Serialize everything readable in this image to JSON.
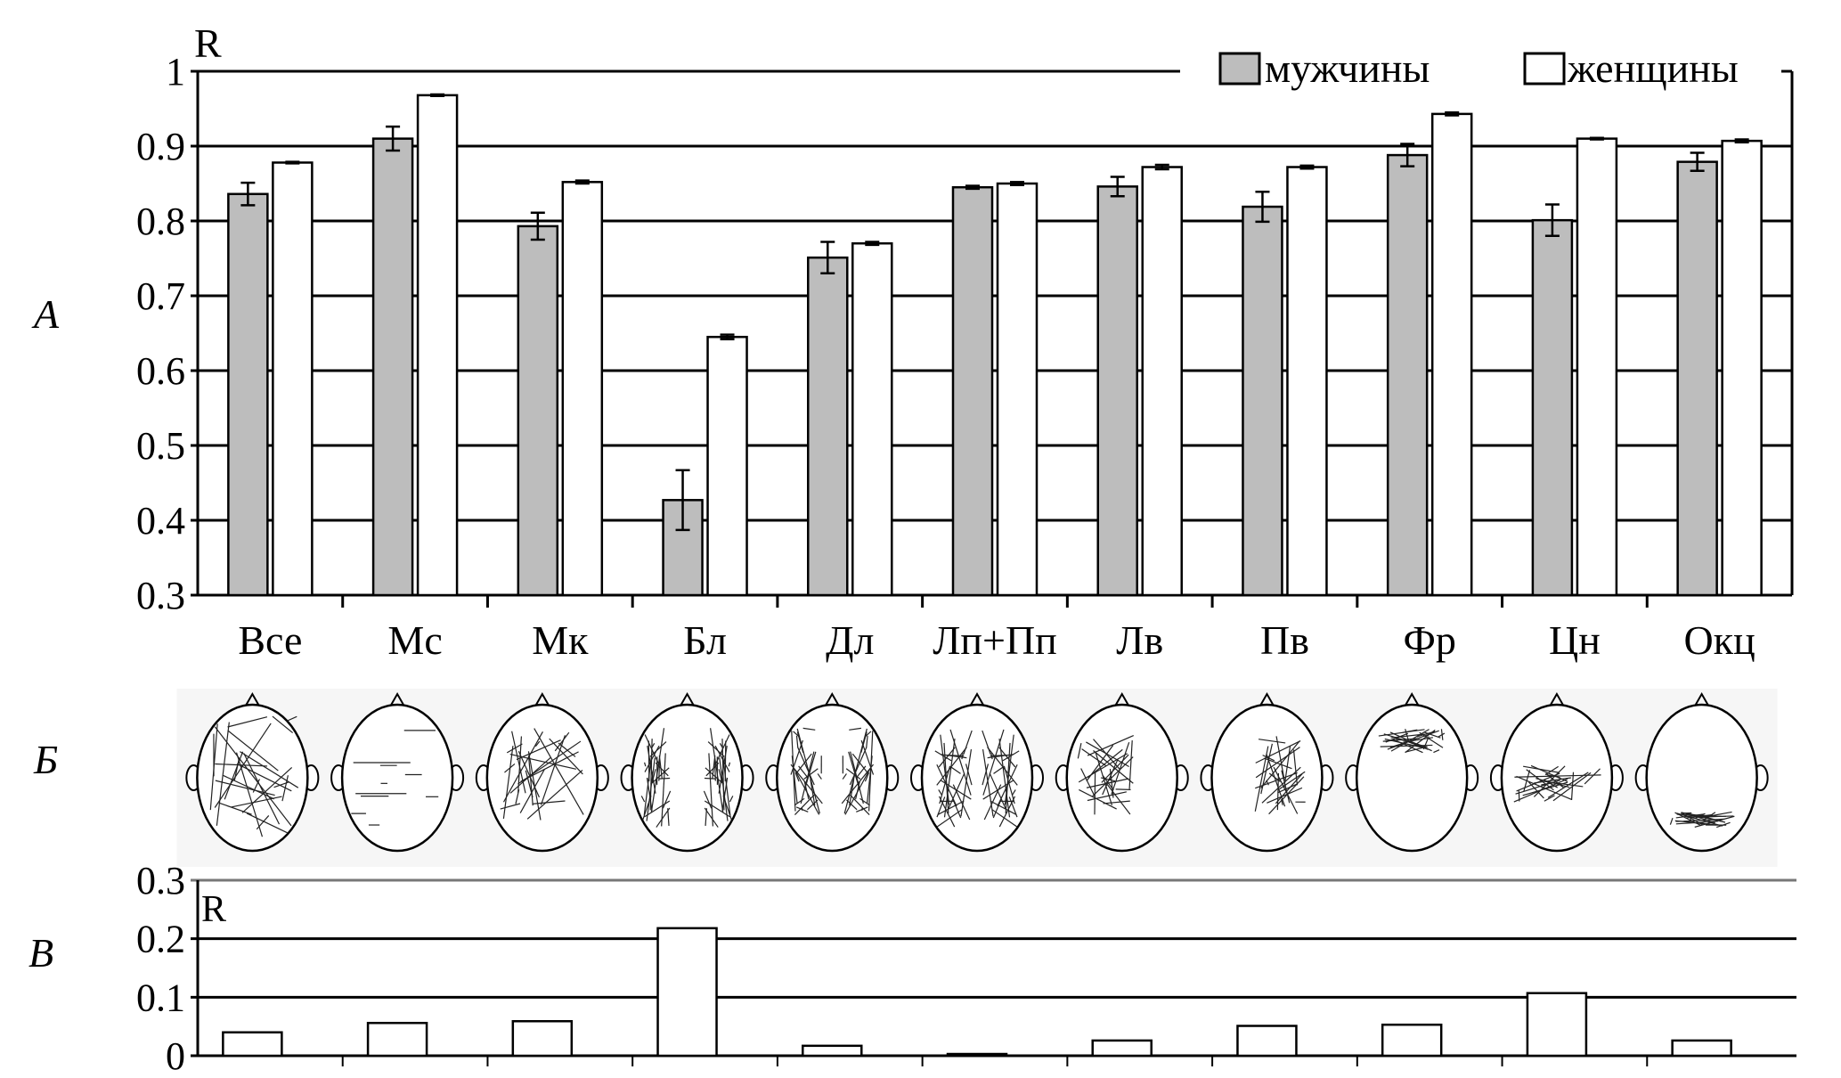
{
  "panel_labels": {
    "a": "A",
    "b": "Б",
    "c": "В"
  },
  "colors": {
    "men": "#bdbdbd",
    "women": "#ffffff",
    "lines": "#000000"
  },
  "chart_data": [
    {
      "type": "bar",
      "panel": "A",
      "ylabel": "R",
      "ylim": [
        0.3,
        1.0
      ],
      "yticks": [
        "0.3",
        "0.4",
        "0.5",
        "0.6",
        "0.7",
        "0.8",
        "0.9",
        "1"
      ],
      "grid": true,
      "legend_placement": "top-right",
      "categories": [
        "Все",
        "Мс",
        "Мк",
        "Бл",
        "Дл",
        "Лп+Пп",
        "Лв",
        "Пв",
        "Фр",
        "Цн",
        "Окц"
      ],
      "series": [
        {
          "name": "мужчины",
          "color": "#bdbdbd",
          "values": [
            0.836,
            0.91,
            0.793,
            0.427,
            0.751,
            0.845,
            0.846,
            0.819,
            0.888,
            0.801,
            0.879
          ],
          "errors": [
            0.015,
            0.016,
            0.018,
            0.04,
            0.021,
            0.002,
            0.013,
            0.02,
            0.015,
            0.021,
            0.012
          ]
        },
        {
          "name": "женщины",
          "color": "#ffffff",
          "values": [
            0.878,
            0.968,
            0.852,
            0.645,
            0.77,
            0.85,
            0.872,
            0.872,
            0.943,
            0.91,
            0.907
          ],
          "errors": [
            0.001,
            0.001,
            0.002,
            0.003,
            0.002,
            0.002,
            0.003,
            0.002,
            0.002,
            0.001,
            0.002
          ]
        }
      ]
    },
    {
      "type": "bar",
      "panel": "В",
      "ylabel": "R",
      "ylim": [
        0,
        0.3
      ],
      "yticks": [
        "0",
        "0.1",
        "0.2",
        "0.3"
      ],
      "grid": true,
      "categories": [
        "Все",
        "Мс",
        "Мк",
        "Бл",
        "Дл",
        "Лп+Пп",
        "Лв",
        "Пв",
        "Фр",
        "Цн",
        "Окц"
      ],
      "values": [
        0.04,
        0.056,
        0.059,
        0.218,
        0.017,
        0.003,
        0.026,
        0.051,
        0.053,
        0.107,
        0.026
      ]
    }
  ],
  "heads": [
    "all",
    "lateral-pairs",
    "dense-center",
    "temporal-lines",
    "frontal-lateral",
    "left-right",
    "left",
    "right",
    "frontal",
    "central",
    "occipital"
  ]
}
